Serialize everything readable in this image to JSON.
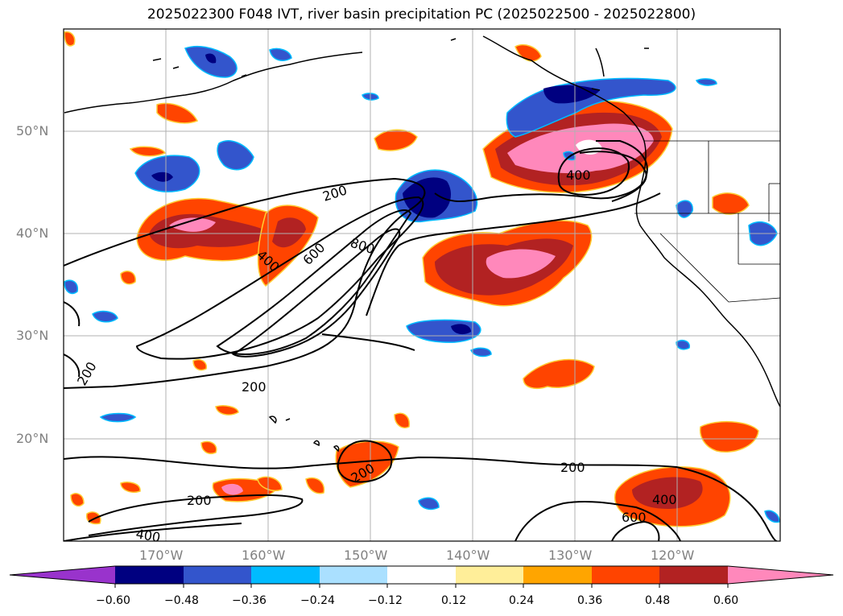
{
  "title": "2025022300 F048 IVT, river basin precipitation PC (2025022500 - 2025022800)",
  "map": {
    "extent": {
      "lon": [
        -180,
        -110
      ],
      "lat": [
        10,
        60
      ]
    },
    "lat_labels": [
      "50°N",
      "40°N",
      "30°N",
      "20°N"
    ],
    "lon_labels": [
      "170°W",
      "160°W",
      "150°W",
      "140°W",
      "130°W",
      "120°W"
    ],
    "contour_labels": [
      "200",
      "400",
      "600",
      "800",
      "400",
      "200",
      "200",
      "200",
      "200",
      "400",
      "600",
      "400",
      "200"
    ]
  },
  "colorbar": {
    "tick_labels": [
      "−0.60",
      "−0.48",
      "−0.36",
      "−0.24",
      "−0.12",
      "0.12",
      "0.24",
      "0.36",
      "0.48",
      "0.60"
    ],
    "colors": [
      "#9933cc",
      "#000080",
      "#3355cc",
      "#00bbff",
      "#aae0ff",
      "#ffffff",
      "#ffee99",
      "#ffa500",
      "#ff4400",
      "#b22222",
      "#ff88bb"
    ]
  }
}
